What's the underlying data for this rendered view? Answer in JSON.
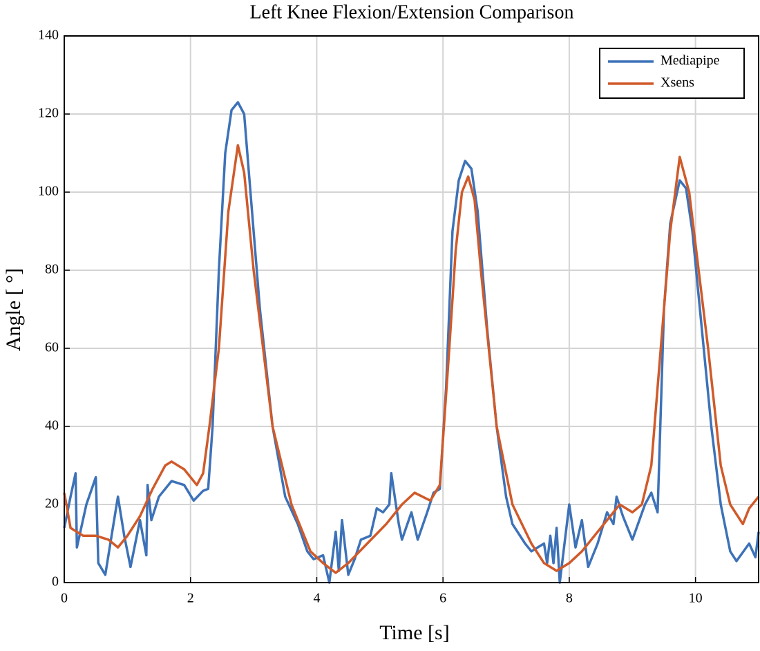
{
  "chart_data": {
    "type": "line",
    "title": "Left Knee Flexion/Extension Comparison",
    "x_label": "Time [s]",
    "y_label": "Angle [ °]",
    "xlim": [
      0,
      11
    ],
    "ylim": [
      0,
      140
    ],
    "xticks": [
      0,
      2,
      4,
      6,
      8,
      10
    ],
    "yticks": [
      0,
      20,
      40,
      60,
      80,
      100,
      120,
      140
    ],
    "grid": true,
    "legend": "upper right",
    "series": [
      {
        "name": "Mediapipe",
        "color": "#3d72b8",
        "x": [
          0,
          0.1,
          0.18,
          0.2,
          0.35,
          0.5,
          0.54,
          0.65,
          0.75,
          0.85,
          0.95,
          1.05,
          1.2,
          1.3,
          1.32,
          1.38,
          1.5,
          1.7,
          1.9,
          2.05,
          2.2,
          2.28,
          2.35,
          2.45,
          2.55,
          2.65,
          2.75,
          2.85,
          2.95,
          3.1,
          3.3,
          3.5,
          3.7,
          3.85,
          3.95,
          4.1,
          4.2,
          4.3,
          4.35,
          4.4,
          4.5,
          4.6,
          4.7,
          4.85,
          4.95,
          5.05,
          5.15,
          5.18,
          5.3,
          5.35,
          5.5,
          5.6,
          5.75,
          5.85,
          5.95,
          6.05,
          6.15,
          6.25,
          6.35,
          6.45,
          6.55,
          6.7,
          6.85,
          7.0,
          7.1,
          7.3,
          7.4,
          7.5,
          7.6,
          7.65,
          7.7,
          7.75,
          7.8,
          7.85,
          8.0,
          8.1,
          8.2,
          8.3,
          8.45,
          8.6,
          8.7,
          8.75,
          8.85,
          9.0,
          9.2,
          9.3,
          9.4,
          9.5,
          9.6,
          9.75,
          9.85,
          9.95,
          10.1,
          10.25,
          10.4,
          10.55,
          10.65,
          10.85,
          10.95,
          11.0
        ],
        "values": [
          14,
          22,
          28,
          9,
          20,
          27,
          5,
          2,
          12,
          22,
          12,
          4,
          16,
          7,
          25,
          16,
          22,
          26,
          25,
          21,
          23.5,
          24,
          40,
          80,
          110,
          121,
          123,
          120,
          100,
          70,
          40,
          22,
          15,
          8,
          6,
          7,
          0,
          13,
          3,
          16,
          2,
          6,
          11,
          12,
          19,
          18,
          20,
          28,
          15,
          11,
          18,
          11,
          18,
          23,
          24,
          50,
          90,
          103,
          108,
          106,
          95,
          65,
          40,
          22,
          15,
          10,
          8,
          9,
          10,
          5,
          12,
          5,
          14,
          0,
          20,
          9,
          16,
          4,
          10,
          18,
          15,
          22,
          17,
          11,
          20,
          23,
          18,
          70,
          92,
          103,
          101,
          90,
          65,
          40,
          20,
          8,
          5.5,
          10,
          6.5,
          13
        ]
      },
      {
        "name": "Xsens",
        "color": "#d05a2a",
        "x": [
          0,
          0.1,
          0.3,
          0.5,
          0.7,
          0.85,
          1.0,
          1.2,
          1.4,
          1.6,
          1.7,
          1.9,
          2.1,
          2.2,
          2.3,
          2.45,
          2.6,
          2.75,
          2.85,
          3.0,
          3.15,
          3.3,
          3.6,
          3.9,
          4.1,
          4.3,
          4.5,
          4.8,
          5.1,
          5.35,
          5.55,
          5.8,
          5.95,
          6.1,
          6.2,
          6.3,
          6.4,
          6.5,
          6.6,
          6.85,
          7.1,
          7.4,
          7.6,
          7.8,
          8.0,
          8.2,
          8.5,
          8.8,
          9.0,
          9.15,
          9.3,
          9.4,
          9.6,
          9.75,
          9.9,
          10.05,
          10.2,
          10.4,
          10.55,
          10.75,
          10.85,
          11.0
        ],
        "values": [
          23,
          14,
          12,
          12,
          11,
          9,
          12,
          17,
          24,
          30,
          31,
          29,
          25,
          28,
          40,
          60,
          95,
          112,
          105,
          80,
          60,
          40,
          20,
          8,
          5,
          2.5,
          5,
          10,
          15,
          20,
          23,
          21,
          25,
          60,
          85,
          100,
          104,
          98,
          80,
          40,
          20,
          10,
          5,
          3,
          5,
          8,
          14,
          20,
          18,
          20,
          30,
          50,
          90,
          109,
          100,
          80,
          60,
          30,
          20,
          15,
          19,
          22
        ]
      }
    ]
  }
}
